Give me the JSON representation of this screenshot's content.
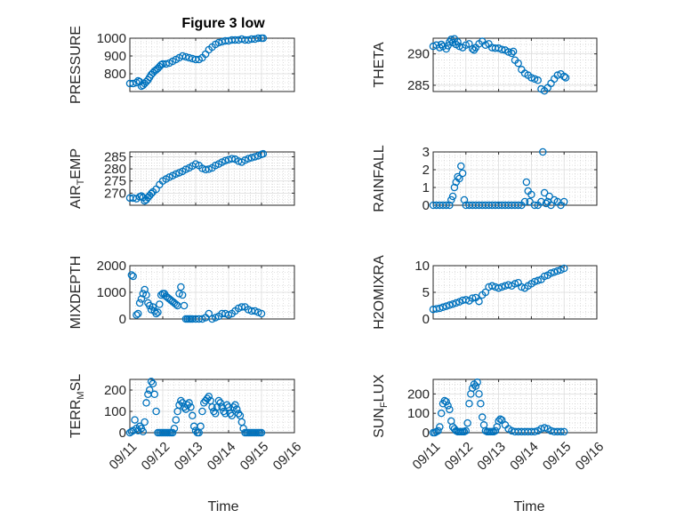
{
  "figure": {
    "title": "Figure 3 low",
    "xlabel": "Time",
    "x_ticks": [
      "09/11",
      "09/12",
      "09/13",
      "09/14",
      "09/15",
      "09/16"
    ],
    "marker_color": "#0072bd"
  },
  "chart_data": [
    {
      "type": "scatter",
      "name": "pressure",
      "ylabel": "PRESSURE",
      "ylabel_sub": "",
      "ylabel_suffix": "",
      "xlim": [
        0,
        5
      ],
      "ylim": [
        700,
        1000
      ],
      "yticks": [
        800,
        900,
        1000
      ],
      "x": [
        0.0,
        0.1,
        0.2,
        0.25,
        0.3,
        0.35,
        0.4,
        0.45,
        0.5,
        0.55,
        0.6,
        0.65,
        0.7,
        0.75,
        0.8,
        0.85,
        0.9,
        0.95,
        1.0,
        1.1,
        1.2,
        1.3,
        1.4,
        1.5,
        1.6,
        1.7,
        1.8,
        1.9,
        2.0,
        2.1,
        2.2,
        2.3,
        2.4,
        2.5,
        2.6,
        2.7,
        2.8,
        2.9,
        3.0,
        3.1,
        3.2,
        3.3,
        3.4,
        3.5,
        3.6,
        3.7,
        3.8,
        3.9,
        4.0,
        4.05
      ],
      "y": [
        745,
        745,
        750,
        760,
        755,
        730,
        735,
        745,
        755,
        765,
        780,
        795,
        805,
        815,
        822,
        830,
        840,
        850,
        855,
        855,
        860,
        870,
        880,
        890,
        900,
        895,
        890,
        885,
        880,
        880,
        890,
        910,
        935,
        950,
        965,
        975,
        980,
        985,
        985,
        990,
        990,
        990,
        995,
        990,
        990,
        995,
        995,
        1000,
        1000,
        1000
      ]
    },
    {
      "type": "scatter",
      "name": "theta",
      "ylabel": "THETA",
      "ylabel_sub": "",
      "ylabel_suffix": "",
      "xlim": [
        0,
        5
      ],
      "ylim": [
        284,
        292.5
      ],
      "yticks": [
        285,
        290
      ],
      "x": [
        0.0,
        0.1,
        0.2,
        0.25,
        0.3,
        0.4,
        0.45,
        0.5,
        0.55,
        0.6,
        0.65,
        0.7,
        0.75,
        0.8,
        0.9,
        1.0,
        1.1,
        1.2,
        1.25,
        1.3,
        1.4,
        1.5,
        1.6,
        1.7,
        1.8,
        1.9,
        2.0,
        2.1,
        2.2,
        2.3,
        2.4,
        2.45,
        2.5,
        2.6,
        2.7,
        2.8,
        2.9,
        3.0,
        3.1,
        3.2,
        3.3,
        3.4,
        3.5,
        3.6,
        3.7,
        3.8,
        3.9,
        4.0,
        4.05
      ],
      "y": [
        291.2,
        291.4,
        291.0,
        291.5,
        291.2,
        290.8,
        291.3,
        291.9,
        292.3,
        291.8,
        292.4,
        291.5,
        291.9,
        291.2,
        291.0,
        291.4,
        291.6,
        290.8,
        290.6,
        291.0,
        291.6,
        292.0,
        291.4,
        291.6,
        291.0,
        290.9,
        290.9,
        290.7,
        290.6,
        290.3,
        290.1,
        290.4,
        289.0,
        288.5,
        287.5,
        286.9,
        286.6,
        286.2,
        286.0,
        285.8,
        284.4,
        284.1,
        284.6,
        285.3,
        286.0,
        286.6,
        286.8,
        286.4,
        286.2
      ]
    },
    {
      "type": "scatter",
      "name": "air_temp",
      "ylabel": "AIR",
      "ylabel_sub": "T",
      "ylabel_suffix": "EMP",
      "xlim": [
        0,
        5
      ],
      "ylim": [
        265,
        287
      ],
      "yticks": [
        270,
        275,
        280,
        285
      ],
      "x": [
        0.0,
        0.1,
        0.2,
        0.3,
        0.35,
        0.4,
        0.45,
        0.5,
        0.55,
        0.6,
        0.65,
        0.7,
        0.8,
        0.9,
        1.0,
        1.1,
        1.2,
        1.3,
        1.4,
        1.5,
        1.6,
        1.7,
        1.8,
        1.9,
        2.0,
        2.1,
        2.2,
        2.3,
        2.4,
        2.5,
        2.6,
        2.7,
        2.8,
        2.9,
        3.0,
        3.1,
        3.2,
        3.3,
        3.4,
        3.5,
        3.6,
        3.7,
        3.8,
        3.9,
        4.0,
        4.05
      ],
      "y": [
        268.0,
        268.0,
        267.7,
        268.5,
        268.8,
        268.2,
        266.8,
        267.3,
        268.2,
        269.0,
        269.8,
        270.5,
        271.6,
        273.5,
        275.0,
        275.8,
        276.6,
        277.2,
        277.9,
        278.4,
        279.0,
        279.8,
        280.4,
        281.2,
        282.0,
        281.4,
        280.2,
        279.7,
        279.9,
        280.4,
        281.4,
        282.0,
        282.8,
        283.4,
        283.8,
        284.2,
        284.0,
        283.2,
        282.8,
        283.6,
        284.2,
        284.6,
        285.0,
        285.4,
        286.0,
        286.2
      ]
    },
    {
      "type": "scatter",
      "name": "rainfall",
      "ylabel": "RAINFALL",
      "ylabel_sub": "",
      "ylabel_suffix": "",
      "xlim": [
        0,
        5
      ],
      "ylim": [
        0,
        3
      ],
      "yticks": [
        0,
        1,
        2,
        3
      ],
      "x": [
        0.0,
        0.1,
        0.2,
        0.3,
        0.4,
        0.5,
        0.55,
        0.6,
        0.65,
        0.7,
        0.75,
        0.8,
        0.85,
        0.9,
        0.95,
        1.0,
        1.1,
        1.2,
        1.3,
        1.4,
        1.5,
        1.6,
        1.7,
        1.8,
        1.9,
        2.0,
        2.1,
        2.2,
        2.3,
        2.4,
        2.5,
        2.6,
        2.7,
        2.8,
        2.85,
        2.9,
        2.95,
        3.0,
        3.1,
        3.2,
        3.3,
        3.35,
        3.4,
        3.45,
        3.5,
        3.55,
        3.6,
        3.7,
        3.8,
        3.9,
        4.0
      ],
      "y": [
        0,
        0,
        0,
        0,
        0,
        0,
        0.3,
        0.5,
        1.0,
        1.3,
        1.6,
        1.5,
        2.2,
        1.8,
        0.3,
        0,
        0,
        0,
        0,
        0,
        0,
        0,
        0,
        0,
        0,
        0,
        0,
        0,
        0,
        0,
        0,
        0,
        0,
        0.2,
        1.3,
        0.8,
        0.2,
        0.6,
        0,
        0,
        0.2,
        3.0,
        0.7,
        0.1,
        0.2,
        0.5,
        0,
        0.3,
        0.2,
        0,
        0.2
      ]
    },
    {
      "type": "scatter",
      "name": "mixdepth",
      "ylabel": "MIXDEPTH",
      "ylabel_sub": "",
      "ylabel_suffix": "",
      "xlim": [
        0,
        5
      ],
      "ylim": [
        0,
        2000
      ],
      "yticks": [
        0,
        1000,
        2000
      ],
      "x": [
        0.05,
        0.1,
        0.2,
        0.25,
        0.3,
        0.35,
        0.4,
        0.45,
        0.5,
        0.55,
        0.6,
        0.65,
        0.7,
        0.75,
        0.8,
        0.85,
        0.9,
        0.95,
        1.0,
        1.05,
        1.1,
        1.15,
        1.2,
        1.25,
        1.3,
        1.35,
        1.4,
        1.45,
        1.5,
        1.55,
        1.6,
        1.65,
        1.7,
        1.75,
        1.8,
        1.85,
        1.9,
        2.0,
        2.1,
        2.2,
        2.3,
        2.4,
        2.5,
        2.6,
        2.7,
        2.8,
        2.9,
        3.0,
        3.1,
        3.2,
        3.3,
        3.4,
        3.5,
        3.6,
        3.7,
        3.8,
        3.9,
        4.0
      ],
      "y": [
        1650,
        1600,
        150,
        200,
        600,
        750,
        950,
        1100,
        900,
        600,
        500,
        350,
        450,
        300,
        200,
        250,
        550,
        900,
        950,
        950,
        850,
        800,
        750,
        700,
        650,
        600,
        550,
        500,
        950,
        1200,
        900,
        500,
        0,
        0,
        0,
        0,
        0,
        0,
        0,
        0,
        50,
        200,
        0,
        50,
        100,
        200,
        200,
        150,
        200,
        300,
        400,
        450,
        450,
        350,
        300,
        300,
        250,
        200
      ]
    },
    {
      "type": "scatter",
      "name": "h2omixra",
      "ylabel": "H2OMIXRA",
      "ylabel_sub": "",
      "ylabel_suffix": "",
      "xlim": [
        0,
        5
      ],
      "ylim": [
        0,
        10
      ],
      "yticks": [
        0,
        5,
        10
      ],
      "x": [
        0.0,
        0.1,
        0.2,
        0.3,
        0.4,
        0.5,
        0.6,
        0.7,
        0.8,
        0.9,
        1.0,
        1.1,
        1.2,
        1.3,
        1.4,
        1.5,
        1.6,
        1.7,
        1.8,
        1.9,
        2.0,
        2.1,
        2.2,
        2.3,
        2.4,
        2.5,
        2.6,
        2.7,
        2.8,
        2.9,
        3.0,
        3.1,
        3.2,
        3.3,
        3.4,
        3.5,
        3.6,
        3.7,
        3.8,
        3.9,
        4.0
      ],
      "y": [
        1.8,
        1.9,
        2.0,
        2.2,
        2.4,
        2.6,
        2.8,
        3.0,
        3.2,
        3.5,
        3.6,
        3.4,
        3.9,
        4.0,
        3.3,
        4.5,
        5.0,
        6.0,
        6.2,
        6.0,
        5.8,
        6.0,
        6.2,
        6.4,
        6.2,
        6.6,
        6.8,
        6.0,
        5.8,
        6.2,
        6.6,
        7.0,
        7.2,
        7.4,
        8.0,
        8.2,
        8.6,
        8.8,
        9.0,
        9.2,
        9.5
      ]
    },
    {
      "type": "scatter",
      "name": "terr_msl",
      "ylabel": "TERR",
      "ylabel_sub": "M",
      "ylabel_suffix": "SL",
      "xlim": [
        0,
        5
      ],
      "ylim": [
        0,
        250
      ],
      "yticks": [
        0,
        100,
        200
      ],
      "x": [
        0.0,
        0.05,
        0.1,
        0.15,
        0.2,
        0.25,
        0.3,
        0.35,
        0.4,
        0.45,
        0.5,
        0.55,
        0.6,
        0.65,
        0.7,
        0.75,
        0.8,
        0.85,
        0.9,
        0.95,
        1.0,
        1.05,
        1.1,
        1.15,
        1.2,
        1.25,
        1.3,
        1.35,
        1.4,
        1.45,
        1.5,
        1.55,
        1.6,
        1.65,
        1.7,
        1.75,
        1.8,
        1.85,
        1.9,
        1.95,
        2.0,
        2.05,
        2.1,
        2.15,
        2.2,
        2.25,
        2.3,
        2.35,
        2.4,
        2.45,
        2.5,
        2.55,
        2.6,
        2.65,
        2.7,
        2.75,
        2.8,
        2.85,
        2.9,
        2.95,
        3.0,
        3.05,
        3.1,
        3.15,
        3.2,
        3.25,
        3.3,
        3.35,
        3.4,
        3.45,
        3.5,
        3.55,
        3.6,
        3.65,
        3.7,
        3.75,
        3.8,
        3.85,
        3.9,
        3.95,
        4.0
      ],
      "y": [
        0,
        5,
        10,
        60,
        20,
        10,
        30,
        20,
        5,
        50,
        140,
        180,
        200,
        240,
        230,
        180,
        100,
        0,
        0,
        0,
        0,
        0,
        0,
        0,
        0,
        0,
        0,
        20,
        60,
        100,
        130,
        150,
        140,
        120,
        110,
        130,
        140,
        120,
        80,
        30,
        10,
        0,
        0,
        30,
        100,
        140,
        150,
        160,
        170,
        150,
        120,
        100,
        90,
        120,
        150,
        140,
        120,
        100,
        90,
        130,
        120,
        90,
        80,
        120,
        130,
        110,
        90,
        80,
        50,
        20,
        0,
        0,
        0,
        0,
        0,
        0,
        0,
        0,
        0,
        0,
        0
      ]
    },
    {
      "type": "scatter",
      "name": "sun_flux",
      "ylabel": "SUN",
      "ylabel_sub": "F",
      "ylabel_suffix": "LUX",
      "xlim": [
        0,
        5
      ],
      "ylim": [
        0,
        275
      ],
      "yticks": [
        0,
        100,
        200
      ],
      "x": [
        0.0,
        0.05,
        0.1,
        0.15,
        0.2,
        0.25,
        0.3,
        0.35,
        0.4,
        0.45,
        0.5,
        0.55,
        0.6,
        0.65,
        0.7,
        0.75,
        0.8,
        0.85,
        0.9,
        0.95,
        1.0,
        1.05,
        1.1,
        1.15,
        1.2,
        1.25,
        1.3,
        1.35,
        1.4,
        1.45,
        1.5,
        1.55,
        1.6,
        1.65,
        1.7,
        1.75,
        1.8,
        1.85,
        1.9,
        1.95,
        2.0,
        2.05,
        2.1,
        2.2,
        2.3,
        2.4,
        2.5,
        2.6,
        2.7,
        2.8,
        2.9,
        3.0,
        3.1,
        3.2,
        3.3,
        3.4,
        3.5,
        3.6,
        3.7,
        3.8,
        3.9,
        4.0
      ],
      "y": [
        0,
        0,
        5,
        10,
        30,
        100,
        150,
        165,
        160,
        140,
        120,
        60,
        30,
        20,
        10,
        5,
        5,
        5,
        5,
        5,
        10,
        50,
        150,
        200,
        230,
        250,
        240,
        260,
        200,
        150,
        80,
        40,
        10,
        5,
        5,
        5,
        5,
        5,
        10,
        30,
        60,
        70,
        65,
        40,
        20,
        10,
        5,
        5,
        5,
        5,
        5,
        5,
        5,
        10,
        20,
        25,
        20,
        10,
        5,
        5,
        5,
        5
      ]
    }
  ]
}
